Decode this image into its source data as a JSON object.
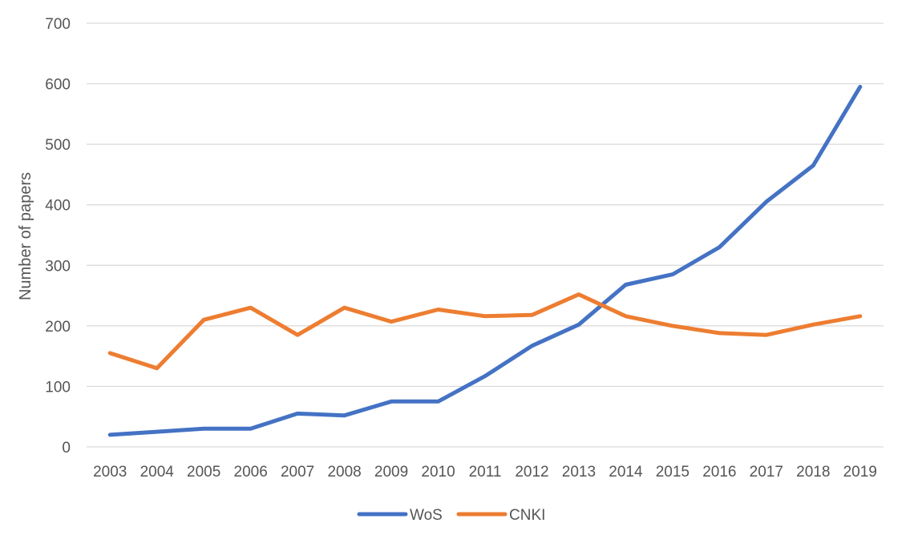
{
  "chart_data": {
    "type": "line",
    "categories": [
      "2003",
      "2004",
      "2005",
      "2006",
      "2007",
      "2008",
      "2009",
      "2010",
      "2011",
      "2012",
      "2013",
      "2014",
      "2015",
      "2016",
      "2017",
      "2018",
      "2019"
    ],
    "series": [
      {
        "name": "WoS",
        "color": "#4472c4",
        "values": [
          20,
          25,
          30,
          30,
          55,
          52,
          75,
          75,
          117,
          167,
          202,
          268,
          285,
          330,
          405,
          465,
          595
        ]
      },
      {
        "name": "CNKI",
        "color": "#ed7d31",
        "values": [
          155,
          130,
          210,
          230,
          185,
          230,
          207,
          227,
          216,
          218,
          252,
          216,
          200,
          188,
          185,
          202,
          216
        ]
      }
    ],
    "title": "",
    "xlabel": "",
    "ylabel": "Number of papers",
    "ylim": [
      0,
      700
    ],
    "yticks": [
      "0",
      "100",
      "200",
      "300",
      "400",
      "500",
      "600",
      "700"
    ],
    "grid": true,
    "legend_position": "bottom"
  }
}
